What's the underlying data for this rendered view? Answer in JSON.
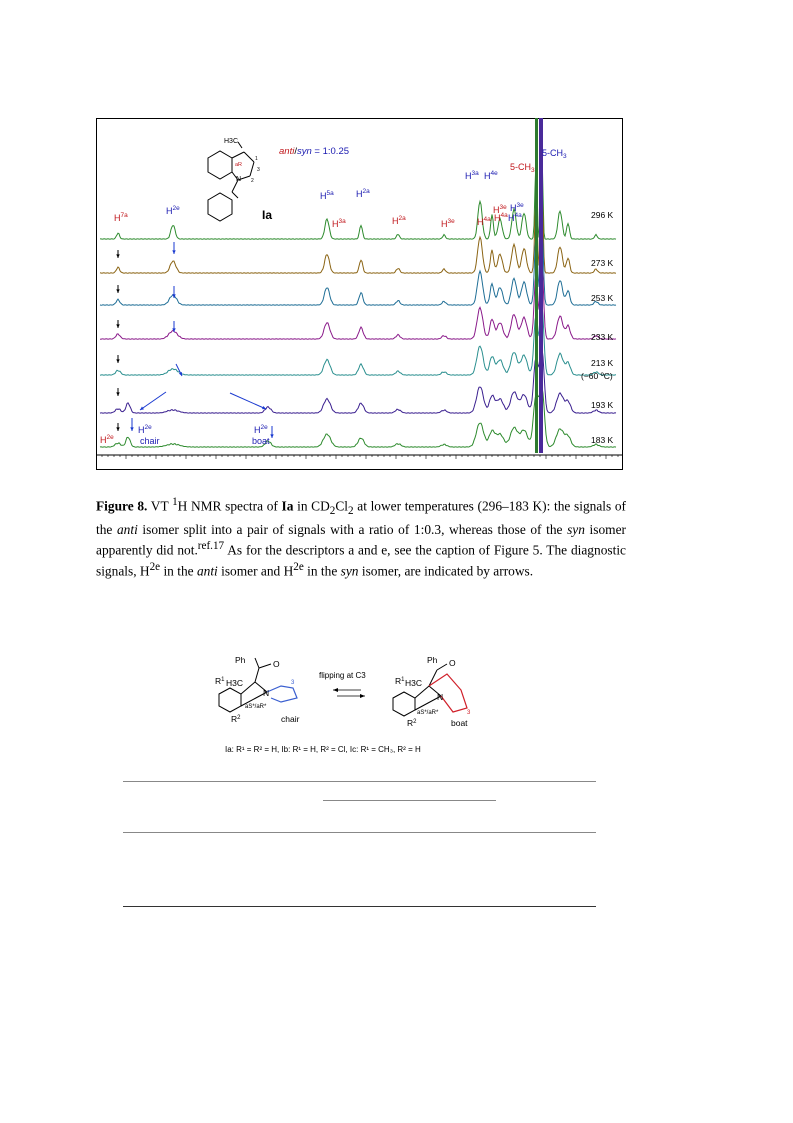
{
  "figure": {
    "ratio_label": {
      "anti": "anti",
      "sep": "/",
      "syn": "syn",
      "rest": " = 1:0.25"
    },
    "compound_label": "Ia",
    "structure_labels": {
      "h3c": "H3C",
      "aR": "aR",
      "n": "N",
      "num1": "1",
      "num2": "2",
      "num3": "3"
    },
    "temperatures": [
      "296 K",
      "273 K",
      "253 K",
      "233 K",
      "213 K",
      "193 K",
      "183 K"
    ],
    "temp_note": "(−60 ºC)",
    "peaks": [
      {
        "base": "H",
        "sup": "7a",
        "color": "#c0161b"
      },
      {
        "base": "H",
        "sup": "2e",
        "color": "#1a1ab0"
      },
      {
        "base": "H",
        "sup": "5a",
        "color": "#1a1ab0"
      },
      {
        "base": "H",
        "sup": "3a",
        "color": "#c0161b"
      },
      {
        "base": "H",
        "sup": "2a",
        "color": "#1a1ab0"
      },
      {
        "base": "H",
        "sup": "2a",
        "color": "#c0161b"
      },
      {
        "base": "H",
        "sup": "3e",
        "color": "#c0161b"
      },
      {
        "base": "H",
        "sup": "3a",
        "color": "#1a1ab0"
      },
      {
        "base": "H",
        "sup": "4e",
        "color": "#1a1ab0"
      },
      {
        "base": "H",
        "sup": "4a",
        "color": "#c0161b"
      },
      {
        "base": "H",
        "sup": "3e",
        "color": "#c0161b"
      },
      {
        "base": "H",
        "sup": "4a",
        "color": "#c0161b"
      },
      {
        "base": "H",
        "sup": "3e",
        "color": "#1a1ab0"
      },
      {
        "base": "H",
        "sup": "4a",
        "color": "#1a1ab0"
      },
      {
        "base": "5-CH",
        "sub": "3",
        "color": "#c0161b"
      },
      {
        "base": "5-CH",
        "sub": "3",
        "color": "#1a1ab0"
      }
    ],
    "bottom_labels": {
      "h2e_left": {
        "base": "H",
        "sup": "2e"
      },
      "h2e_chair": {
        "base": "H",
        "sup": "2e"
      },
      "chair": "chair",
      "h2e_boat": {
        "base": "H",
        "sup": "2e"
      },
      "boat": "boat"
    },
    "trace_colors": [
      "#2e8b2e",
      "#8b6414",
      "#1f6e96",
      "#8a1a8a",
      "#2a8f8f",
      "#3a1f8f",
      "#2e8b2e"
    ]
  },
  "caption": {
    "label": "Figure 8.",
    "t1": " VT ",
    "sup1": "1",
    "t2": "H NMR spectra of ",
    "b1": "Ia",
    "t3": " in CD",
    "sub1": "2",
    "t4": "Cl",
    "sub2": "2",
    "t5": " at lower temperatures (296–183 K): the signals of the ",
    "i1": "anti",
    "t6": " isomer split into a pair of signals with a ratio of 1:0.3, whereas those of the ",
    "i2": "syn",
    "t7": " isomer apparently did not.",
    "sup2": "ref.17",
    "t8": " As for the descriptors a and e, see the caption of Figure 5. The diagnostic signals, H",
    "sup3": "2e",
    "t9": " in the ",
    "i3": "anti",
    "t10": " isomer and H",
    "sup4": "2e",
    "t11": " in the ",
    "i4": "syn",
    "t12": " isomer, are indicated by arrows."
  },
  "scheme": {
    "ph_left": "Ph",
    "o_left": "O",
    "r1h3c": "R",
    "r1sup": "1",
    "h3c_left": "H3C",
    "n_left": "N",
    "r2_left": "R",
    "r2sup": "2",
    "num_left": "3",
    "ar_left": "aS*/aR*",
    "chair": "chair",
    "flip": "flipping at C3",
    "ph_right": "Ph",
    "o_right": "O",
    "r1_right": "R",
    "h3c_right": "H3C",
    "n_right": "N",
    "r2_right": "R",
    "num_right": "3",
    "ar_right": "aS*/aR*",
    "boat": "boat",
    "legend": "Ia: R¹ = R² = H,  Ib: R¹ = H, R² = Cl, Ic: R¹ = CH₃, R² = H"
  }
}
